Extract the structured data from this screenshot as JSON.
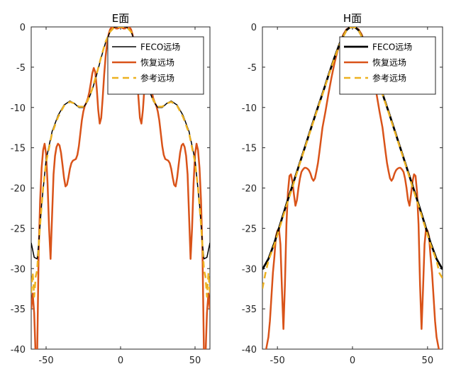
{
  "chart_data": [
    {
      "type": "line",
      "title": "E面",
      "xlabel": "",
      "ylabel": "",
      "xlim": [
        -60,
        60
      ],
      "ylim": [
        -40,
        0
      ],
      "xticks": [
        -50,
        0,
        50
      ],
      "yticks": [
        0,
        -5,
        -10,
        -15,
        -20,
        -25,
        -30,
        -35,
        -40
      ],
      "legend_position": "top-right",
      "series": [
        {
          "name": "FECO远场",
          "color": "#000000",
          "style": "solid",
          "x": [
            -60,
            -58,
            -56,
            -55,
            -53,
            -50,
            -46,
            -42,
            -38,
            -34,
            -31,
            -28,
            -25,
            -22,
            -19,
            -16,
            -13,
            -10,
            -7,
            -4,
            0,
            4,
            7,
            10,
            13,
            16,
            19,
            22,
            25,
            28,
            31,
            34,
            38,
            42,
            46,
            50,
            53,
            55,
            56,
            58,
            60
          ],
          "y": [
            -26.8,
            -28.6,
            -28.8,
            -27,
            -22,
            -16.5,
            -13,
            -11,
            -9.7,
            -9.2,
            -9.5,
            -10,
            -10,
            -9.2,
            -7.8,
            -5.9,
            -3.8,
            -1.9,
            -0.6,
            0,
            0,
            0,
            -0.6,
            -1.9,
            -3.8,
            -5.9,
            -7.8,
            -9.2,
            -10,
            -10,
            -9.5,
            -9.2,
            -9.7,
            -11,
            -13,
            -16.5,
            -22,
            -27,
            -28.8,
            -28.6,
            -26.8
          ]
        },
        {
          "name": "恢复远场",
          "color": "#d95319",
          "style": "solid",
          "x": [
            -60,
            -59,
            -58,
            -57,
            -56,
            -55,
            -54,
            -53,
            -52,
            -51,
            -50,
            -49,
            -48,
            -47,
            -46,
            -45,
            -44,
            -43,
            -42,
            -41,
            -40,
            -39,
            -38,
            -37,
            -36,
            -35,
            -34,
            -33,
            -32,
            -31,
            -30,
            -29,
            -28,
            -27,
            -26,
            -25,
            -24,
            -23,
            -22,
            -21,
            -20,
            -19,
            -18,
            -17,
            -16,
            -15,
            -14,
            -13,
            -12,
            -11,
            -10,
            -9,
            -8,
            -7,
            -6,
            -5,
            -4,
            -3,
            -2,
            -1,
            0,
            1,
            2,
            3,
            4,
            5,
            6,
            7,
            8,
            9,
            10,
            11,
            12,
            13,
            14,
            15,
            16,
            17,
            18,
            19,
            20,
            21,
            22,
            23,
            24,
            25,
            26,
            27,
            28,
            29,
            30,
            31,
            32,
            33,
            34,
            35,
            36,
            37,
            38,
            39,
            40,
            41,
            42,
            43,
            44,
            45,
            46,
            47,
            48,
            49,
            50,
            51,
            52,
            53,
            54,
            55,
            56,
            57,
            58,
            59,
            60
          ],
          "y": [
            -35,
            -33.1,
            -35.5,
            -41,
            -40.8,
            -28,
            -21.5,
            -17.5,
            -15.3,
            -14.5,
            -15.8,
            -19.5,
            -25,
            -28.8,
            -23.5,
            -18.3,
            -16,
            -14.9,
            -14.5,
            -14.7,
            -15.6,
            -17.1,
            -18.7,
            -19.8,
            -19.6,
            -18.7,
            -17.6,
            -16.9,
            -16.6,
            -16.5,
            -16.4,
            -15.9,
            -14.8,
            -13.2,
            -11.6,
            -10.5,
            -9.8,
            -9.4,
            -8.9,
            -8.1,
            -7,
            -5.8,
            -5.1,
            -5.6,
            -7.6,
            -10.3,
            -12,
            -11.3,
            -8.8,
            -5.9,
            -3.6,
            -2,
            -0.9,
            -0.3,
            -0.05,
            0,
            -0.05,
            -0.2,
            -0.2,
            -0.1,
            0,
            -0.1,
            -0.2,
            -0.2,
            -0.05,
            0,
            -0.05,
            -0.3,
            -0.9,
            -2,
            -3.6,
            -5.9,
            -8.8,
            -11.3,
            -12,
            -10.3,
            -7.6,
            -5.6,
            -5.1,
            -5.8,
            -7,
            -8.1,
            -8.9,
            -9.4,
            -9.8,
            -10.5,
            -11.6,
            -13.2,
            -14.8,
            -15.9,
            -16.4,
            -16.5,
            -16.6,
            -16.9,
            -17.6,
            -18.7,
            -19.6,
            -19.8,
            -18.7,
            -17.1,
            -15.6,
            -14.7,
            -14.5,
            -14.9,
            -16,
            -18.3,
            -23.5,
            -28.8,
            -25,
            -19.5,
            -15.8,
            -14.5,
            -15.3,
            -17.5,
            -21.5,
            -28,
            -40.8,
            -41,
            -35.5,
            -33.1,
            -35
          ]
        },
        {
          "name": "参考远场",
          "color": "#edb120",
          "style": "dashed",
          "x": [
            -60,
            -59,
            -58,
            -57,
            -56,
            -55,
            -54,
            -52,
            -50,
            -46,
            -42,
            -38,
            -34,
            -31,
            -28,
            -25,
            -22,
            -19,
            -16,
            -13,
            -10,
            -7,
            -4,
            0,
            4,
            7,
            10,
            13,
            16,
            19,
            22,
            25,
            28,
            31,
            34,
            38,
            42,
            46,
            50,
            52,
            54,
            55,
            56,
            57,
            58,
            59,
            60
          ],
          "y": [
            -33,
            -30.5,
            -33.5,
            -31,
            -30.2,
            -27.2,
            -24.5,
            -20,
            -16.8,
            -13.2,
            -11.2,
            -9.8,
            -9.3,
            -9.5,
            -9.9,
            -9.9,
            -9.1,
            -7.7,
            -5.8,
            -3.7,
            -1.8,
            -0.6,
            0,
            0,
            0,
            -0.6,
            -1.8,
            -3.7,
            -5.8,
            -7.7,
            -9.1,
            -9.9,
            -9.9,
            -9.5,
            -9.3,
            -9.8,
            -11.2,
            -13.2,
            -16.8,
            -20,
            -24.5,
            -27.2,
            -30.2,
            -31,
            -33.5,
            -30.5,
            -33
          ]
        }
      ]
    },
    {
      "type": "line",
      "title": "H面",
      "xlabel": "",
      "ylabel": "",
      "xlim": [
        -60,
        60
      ],
      "ylim": [
        -40,
        0
      ],
      "xticks": [
        -50,
        0,
        50
      ],
      "yticks": [
        0,
        -5,
        -10,
        -15,
        -20,
        -25,
        -30,
        -35,
        -40
      ],
      "legend_position": "top-right",
      "series": [
        {
          "name": "FECO远场",
          "color": "#000000",
          "style": "solid",
          "x": [
            -60,
            -56,
            -52,
            -48,
            -44,
            -40,
            -36,
            -32,
            -28,
            -24,
            -20,
            -16,
            -12,
            -8,
            -4,
            -2,
            0,
            2,
            4,
            8,
            12,
            16,
            20,
            24,
            28,
            32,
            36,
            40,
            44,
            48,
            52,
            56,
            60
          ],
          "y": [
            -30.1,
            -28.8,
            -26.8,
            -24.4,
            -22,
            -19.7,
            -17.4,
            -15.1,
            -12.8,
            -10.5,
            -8.3,
            -6,
            -3.8,
            -1.8,
            -0.4,
            -0.1,
            0,
            -0.1,
            -0.4,
            -1.8,
            -3.8,
            -6,
            -8.3,
            -10.5,
            -12.8,
            -15.1,
            -17.4,
            -19.7,
            -22,
            -24.4,
            -26.8,
            -28.8,
            -30.1
          ]
        },
        {
          "name": "恢复远场",
          "color": "#d95319",
          "style": "solid",
          "x": [
            -60,
            -58,
            -57,
            -56,
            -55,
            -54,
            -53,
            -52,
            -51,
            -50,
            -49,
            -48,
            -47,
            -46,
            -45,
            -44,
            -43,
            -42,
            -41,
            -40,
            -39,
            -38,
            -37,
            -36,
            -35,
            -34,
            -33,
            -32,
            -31,
            -30,
            -29,
            -28,
            -27,
            -26,
            -25,
            -24,
            -23,
            -22,
            -21,
            -20,
            -18,
            -16,
            -14,
            -12,
            -10,
            -8,
            -6,
            -4,
            -2,
            0,
            2,
            4,
            6,
            8,
            10,
            12,
            14,
            16,
            18,
            20,
            21,
            22,
            23,
            24,
            25,
            26,
            27,
            28,
            29,
            30,
            31,
            32,
            33,
            34,
            35,
            36,
            37,
            38,
            39,
            40,
            41,
            42,
            43,
            44,
            45,
            46,
            47,
            48,
            49,
            50,
            51,
            52,
            53,
            54,
            55,
            56,
            57,
            58,
            60
          ],
          "y": [
            -41.5,
            -40.5,
            -39.5,
            -38.5,
            -36.5,
            -33.5,
            -30.5,
            -28.5,
            -26,
            -25.3,
            -25,
            -27,
            -32.5,
            -37.5,
            -32,
            -24.5,
            -20.5,
            -18.5,
            -18.3,
            -19.2,
            -20.8,
            -22.2,
            -21.5,
            -20,
            -18.8,
            -18,
            -17.7,
            -17.5,
            -17.5,
            -17.6,
            -17.8,
            -18.2,
            -18.8,
            -19.1,
            -18.8,
            -17.9,
            -16.9,
            -15.5,
            -14,
            -12.5,
            -10.5,
            -8.3,
            -6.3,
            -4.5,
            -3,
            -1.8,
            -0.9,
            -0.3,
            -0.1,
            0,
            -0.1,
            -0.3,
            -0.9,
            -1.8,
            -3,
            -4.5,
            -6.3,
            -8.3,
            -10.5,
            -12.5,
            -14,
            -15.5,
            -16.9,
            -17.9,
            -18.8,
            -19.1,
            -18.8,
            -18.2,
            -17.8,
            -17.6,
            -17.5,
            -17.5,
            -17.7,
            -18,
            -18.8,
            -20,
            -21.5,
            -22.2,
            -20.8,
            -19.2,
            -18.3,
            -18.5,
            -20.5,
            -24.5,
            -32,
            -37.5,
            -32.5,
            -27,
            -25,
            -25.3,
            -26,
            -28.5,
            -30.5,
            -33.5,
            -36.5,
            -38.5,
            -39.5,
            -40.5,
            -41.5
          ]
        },
        {
          "name": "参考远场",
          "color": "#edb120",
          "style": "dashed",
          "x": [
            -60,
            -58,
            -56,
            -52,
            -48,
            -44,
            -40,
            -36,
            -32,
            -28,
            -24,
            -20,
            -16,
            -12,
            -8,
            -4,
            -2,
            0,
            2,
            4,
            8,
            12,
            16,
            20,
            24,
            28,
            32,
            36,
            40,
            44,
            48,
            52,
            56,
            58,
            60
          ],
          "y": [
            -32.5,
            -30.6,
            -29,
            -27,
            -24.6,
            -22.2,
            -19.9,
            -17.5,
            -15.2,
            -12.9,
            -10.6,
            -8.4,
            -6.1,
            -3.9,
            -1.9,
            -0.4,
            -0.1,
            0,
            -0.1,
            -0.4,
            -1.9,
            -3.9,
            -6.1,
            -8.4,
            -10.6,
            -12.9,
            -15.2,
            -17.5,
            -19.9,
            -22.2,
            -24.6,
            -27,
            -29,
            -30.6,
            -31.2
          ]
        }
      ]
    }
  ]
}
